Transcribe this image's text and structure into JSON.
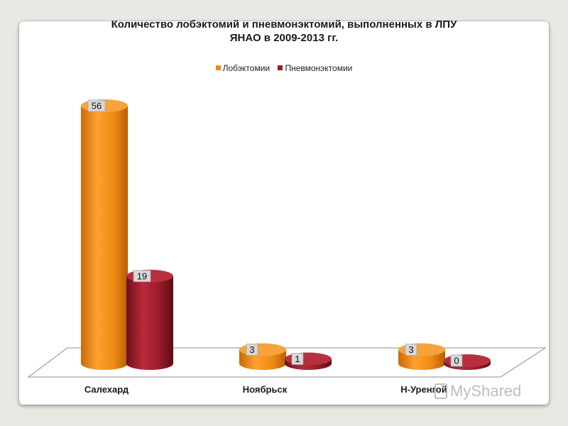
{
  "chart_data": {
    "type": "bar",
    "title_lines": [
      "Количество лобэктомий и пневмонэктомий, выполненных в ЛПУ",
      "ЯНАО в 2009-2013 гг."
    ],
    "categories": [
      "Салехард",
      "Ноябрьск",
      "Н-Уренгой"
    ],
    "series": [
      {
        "name": "Лобэктомии",
        "values": [
          56,
          3,
          3
        ],
        "color": "#f08a14"
      },
      {
        "name": "Пневмонэктомии",
        "values": [
          19,
          1,
          0
        ],
        "color": "#9b1c2a"
      }
    ],
    "xlabel": "",
    "ylabel": "",
    "ylim": [
      0,
      56
    ],
    "grid": false,
    "legend_position": "top",
    "style": "3d-cylinder"
  },
  "watermark": {
    "text": "MyShared"
  }
}
